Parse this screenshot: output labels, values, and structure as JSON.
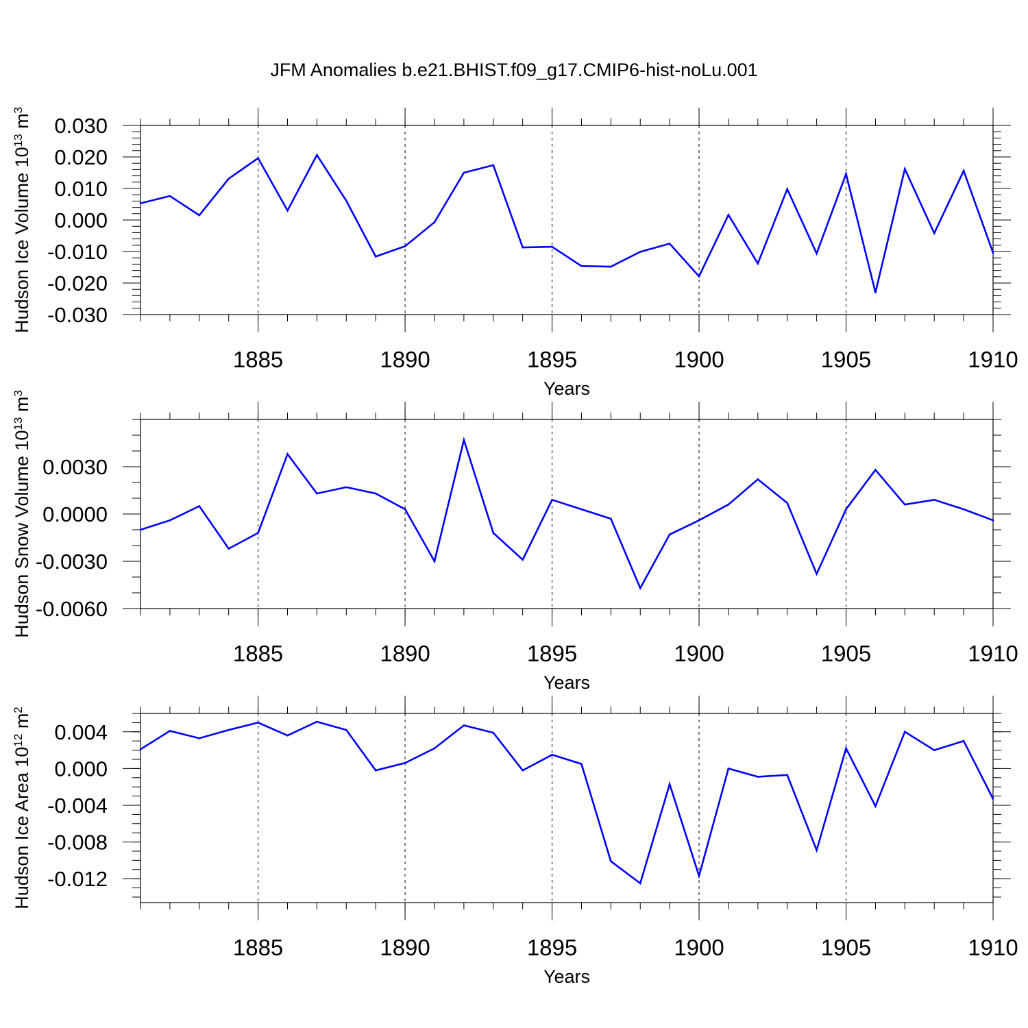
{
  "title": "JFM Anomalies b.e21.BHIST.f09_g17.CMIP6-hist-noLu.001",
  "line_color": "#0000ff",
  "chart_data": [
    {
      "type": "line",
      "ylabel": "Hudson Ice Volume",
      "ylabel_unit_base": "10",
      "ylabel_unit_exp": "13",
      "ylabel_unit_tail": "m",
      "ylabel_unit_tail_exp": "3",
      "xlabel": "Years",
      "xlim": [
        1881,
        1910
      ],
      "ylim": [
        -0.03,
        0.03
      ],
      "y_ticks": [
        -0.03,
        -0.02,
        -0.01,
        0.0,
        0.01,
        0.02,
        0.03
      ],
      "y_tick_labels": [
        "-0.030",
        "-0.020",
        "-0.010",
        "0.000",
        "0.010",
        "0.020",
        "0.030"
      ],
      "y_minor_step": 0.002,
      "x_ticks": [
        1885,
        1890,
        1895,
        1900,
        1905,
        1910
      ],
      "x_tick_labels": [
        "1885",
        "1890",
        "1895",
        "1900",
        "1905",
        "1910"
      ],
      "x": [
        1881,
        1882,
        1883,
        1884,
        1885,
        1886,
        1887,
        1888,
        1889,
        1890,
        1891,
        1892,
        1893,
        1894,
        1895,
        1896,
        1897,
        1898,
        1899,
        1900,
        1901,
        1902,
        1903,
        1904,
        1905,
        1906,
        1907,
        1908,
        1909,
        1910
      ],
      "values": [
        0.0053,
        0.0076,
        0.0015,
        0.0131,
        0.0196,
        0.003,
        0.0206,
        0.0061,
        -0.0116,
        -0.0083,
        -0.0007,
        0.015,
        0.0174,
        -0.0087,
        -0.0085,
        -0.0146,
        -0.0148,
        -0.0101,
        -0.0075,
        -0.0179,
        0.0016,
        -0.0138,
        0.0098,
        -0.0106,
        0.0146,
        -0.023,
        0.0162,
        -0.0042,
        0.0156,
        -0.0104
      ]
    },
    {
      "type": "line",
      "ylabel": "Hudson Snow Volume",
      "ylabel_unit_base": "10",
      "ylabel_unit_exp": "13",
      "ylabel_unit_tail": "m",
      "ylabel_unit_tail_exp": "3",
      "xlabel": "Years",
      "xlim": [
        1881,
        1910
      ],
      "ylim": [
        -0.006,
        0.006
      ],
      "y_ticks": [
        -0.006,
        -0.003,
        0.0,
        0.003
      ],
      "y_tick_labels": [
        "-0.0060",
        "-0.0030",
        "0.0000",
        "0.0030"
      ],
      "y_minor_step": 0.001,
      "x_ticks": [
        1885,
        1890,
        1895,
        1900,
        1905,
        1910
      ],
      "x_tick_labels": [
        "1885",
        "1890",
        "1895",
        "1900",
        "1905",
        "1910"
      ],
      "x": [
        1881,
        1882,
        1883,
        1884,
        1885,
        1886,
        1887,
        1888,
        1889,
        1890,
        1891,
        1892,
        1893,
        1894,
        1895,
        1896,
        1897,
        1898,
        1899,
        1900,
        1901,
        1902,
        1903,
        1904,
        1905,
        1906,
        1907,
        1908,
        1909,
        1910
      ],
      "values": [
        -0.001,
        -0.0004,
        0.0005,
        -0.0022,
        -0.0012,
        0.0038,
        0.0013,
        0.0017,
        0.0013,
        0.0003,
        -0.003,
        0.0047,
        -0.0012,
        -0.0029,
        0.0009,
        0.0003,
        -0.0003,
        -0.0047,
        -0.0013,
        -0.0004,
        0.0006,
        0.0022,
        0.0007,
        -0.0038,
        0.0003,
        0.0028,
        0.0006,
        0.0009,
        0.0003,
        -0.0004
      ]
    },
    {
      "type": "line",
      "ylabel": "Hudson Ice Area",
      "ylabel_unit_base": "10",
      "ylabel_unit_exp": "12",
      "ylabel_unit_tail": "m",
      "ylabel_unit_tail_exp": "2",
      "xlabel": "Years",
      "xlim": [
        1881,
        1910
      ],
      "ylim": [
        -0.0146,
        0.006
      ],
      "y_ticks": [
        -0.012,
        -0.008,
        -0.004,
        0.0,
        0.004
      ],
      "y_tick_labels": [
        "-0.012",
        "-0.008",
        "-0.004",
        "0.000",
        "0.004"
      ],
      "y_minor_step": 0.001,
      "x_ticks": [
        1885,
        1890,
        1895,
        1900,
        1905,
        1910
      ],
      "x_tick_labels": [
        "1885",
        "1890",
        "1895",
        "1900",
        "1905",
        "1910"
      ],
      "x": [
        1881,
        1882,
        1883,
        1884,
        1885,
        1886,
        1887,
        1888,
        1889,
        1890,
        1891,
        1892,
        1893,
        1894,
        1895,
        1896,
        1897,
        1898,
        1899,
        1900,
        1901,
        1902,
        1903,
        1904,
        1905,
        1906,
        1907,
        1908,
        1909,
        1910
      ],
      "values": [
        0.0021,
        0.0041,
        0.0033,
        0.0042,
        0.005,
        0.0036,
        0.0051,
        0.0042,
        -0.0002,
        0.0006,
        0.0022,
        0.0047,
        0.0039,
        -0.0002,
        0.0015,
        0.0005,
        -0.0101,
        -0.0125,
        -0.0017,
        -0.0117,
        0.0,
        -0.0009,
        -0.0007,
        -0.0089,
        0.0022,
        -0.0041,
        0.004,
        0.002,
        0.003,
        -0.0033
      ]
    }
  ]
}
